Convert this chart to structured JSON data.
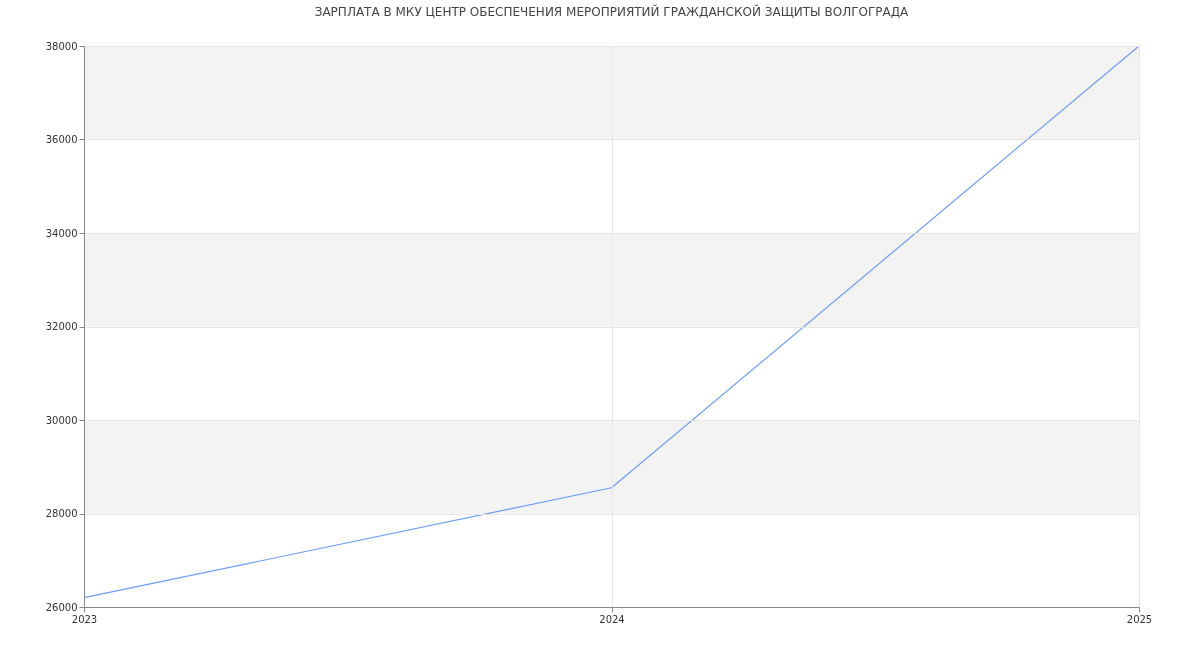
{
  "chart_data": {
    "type": "line",
    "title": "ЗАРПЛАТА В МКУ ЦЕНТР ОБЕСПЕЧЕНИЯ МЕРОПРИЯТИЙ ГРАЖДАНСКОЙ ЗАЩИТЫ ВОЛГОГРАДА",
    "x": [
      2023,
      2024,
      2025
    ],
    "series": [
      {
        "color": "#6f9cf0",
        "values": [
          26200,
          28550,
          38000
        ]
      }
    ],
    "xlim": [
      2023,
      2025
    ],
    "xticks": [
      2023,
      2024,
      2025
    ],
    "ylim": [
      26000,
      38000
    ],
    "yticks": [
      26000,
      28000,
      30000,
      32000,
      34000,
      36000,
      38000
    ],
    "bands": [
      {
        "axis": "y",
        "from": 28000,
        "to": 30000,
        "color": "#f3f3f3"
      },
      {
        "axis": "y",
        "from": 32000,
        "to": 34000,
        "color": "#f3f3f3"
      },
      {
        "axis": "y",
        "from": 36000,
        "to": 38000,
        "color": "#f3f3f3"
      }
    ],
    "grid": true,
    "marker": "none",
    "line_style": "solid"
  }
}
